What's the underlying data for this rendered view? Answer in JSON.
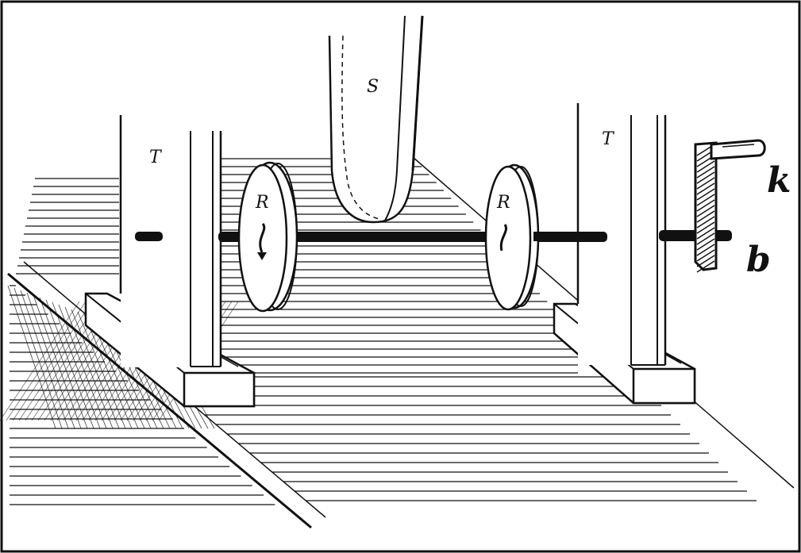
{
  "labels": {
    "shoe": "S",
    "stand_left": "T",
    "stand_right": "T",
    "wheel_left": "R",
    "wheel_right": "R",
    "crank": "k",
    "axle": "b"
  },
  "colors": {
    "ink": "#111111",
    "paper": "#ffffff"
  }
}
